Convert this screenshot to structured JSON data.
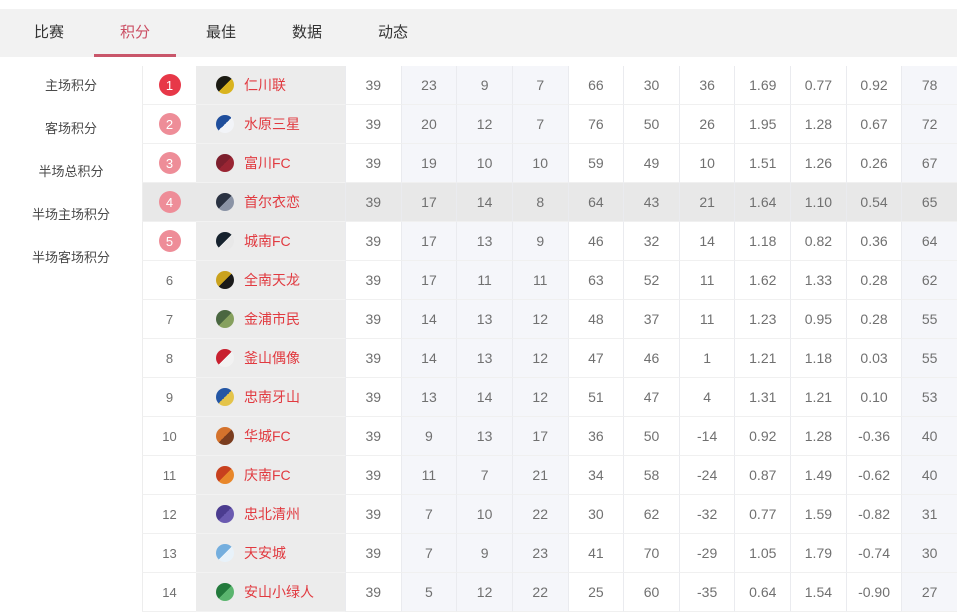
{
  "colors": {
    "accent-red": "#cb4e63",
    "underline": "#c9566a",
    "team-name": "#e13a40",
    "rank-top": "#e73848",
    "rank-sub": "#ee8d98",
    "row-highlight": "#e8e8e8",
    "team-cell-bg": "#ececec",
    "col-tint": "#f5f6fa",
    "tabbar-bg": "#f2f2f2",
    "num-text": "#707070"
  },
  "tabs": [
    {
      "label": "比赛",
      "active": false
    },
    {
      "label": "积分",
      "active": true
    },
    {
      "label": "最佳",
      "active": false
    },
    {
      "label": "数据",
      "active": false
    },
    {
      "label": "动态",
      "active": false
    }
  ],
  "sidebar": {
    "items": [
      "主场积分",
      "客场积分",
      "半场总积分",
      "半场主场积分",
      "半场客场积分"
    ]
  },
  "standings": {
    "rows": [
      {
        "rank": 1,
        "team": "仁川联",
        "logo_colors": [
          "#1b1a12",
          "#d9b31e"
        ],
        "highlighted": false,
        "stats": [
          39,
          23,
          9,
          7,
          66,
          30,
          36,
          "1.69",
          "0.77",
          "0.92",
          78
        ]
      },
      {
        "rank": 2,
        "team": "水原三星",
        "logo_colors": [
          "#1f4e9c",
          "#f2f4f8"
        ],
        "highlighted": false,
        "stats": [
          39,
          20,
          12,
          7,
          76,
          50,
          26,
          "1.95",
          "1.28",
          "0.67",
          72
        ]
      },
      {
        "rank": 3,
        "team": "富川FC",
        "logo_colors": [
          "#7d1f2d",
          "#9a2533"
        ],
        "highlighted": false,
        "stats": [
          39,
          19,
          10,
          10,
          59,
          49,
          10,
          "1.51",
          "1.26",
          "0.26",
          67
        ]
      },
      {
        "rank": 4,
        "team": "首尔衣恋",
        "logo_colors": [
          "#2a3242",
          "#8a93a5"
        ],
        "highlighted": true,
        "stats": [
          39,
          17,
          14,
          8,
          64,
          43,
          21,
          "1.64",
          "1.10",
          "0.54",
          65
        ]
      },
      {
        "rank": 5,
        "team": "城南FC",
        "logo_colors": [
          "#16222e",
          "#e8e8e8"
        ],
        "highlighted": false,
        "stats": [
          39,
          17,
          13,
          9,
          46,
          32,
          14,
          "1.18",
          "0.82",
          "0.36",
          64
        ]
      },
      {
        "rank": 6,
        "team": "全南天龙",
        "logo_colors": [
          "#caa21d",
          "#1a1a1a"
        ],
        "highlighted": false,
        "stats": [
          39,
          17,
          11,
          11,
          63,
          52,
          11,
          "1.62",
          "1.33",
          "0.28",
          62
        ]
      },
      {
        "rank": 7,
        "team": "金浦市民",
        "logo_colors": [
          "#4a6741",
          "#86a05e"
        ],
        "highlighted": false,
        "stats": [
          39,
          14,
          13,
          12,
          48,
          37,
          11,
          "1.23",
          "0.95",
          "0.28",
          55
        ]
      },
      {
        "rank": 8,
        "team": "釜山偶像",
        "logo_colors": [
          "#c8202f",
          "#f2f2f2"
        ],
        "highlighted": false,
        "stats": [
          39,
          14,
          13,
          12,
          47,
          46,
          1,
          "1.21",
          "1.18",
          "0.03",
          55
        ]
      },
      {
        "rank": 9,
        "team": "忠南牙山",
        "logo_colors": [
          "#2456a4",
          "#e4c44a"
        ],
        "highlighted": false,
        "stats": [
          39,
          13,
          14,
          12,
          51,
          47,
          4,
          "1.31",
          "1.21",
          "0.10",
          53
        ]
      },
      {
        "rank": 10,
        "team": "华城FC",
        "logo_colors": [
          "#d4722c",
          "#7a3c1e"
        ],
        "highlighted": false,
        "stats": [
          39,
          9,
          13,
          17,
          36,
          50,
          -14,
          "0.92",
          "1.28",
          "-0.36",
          40
        ]
      },
      {
        "rank": 11,
        "team": "庆南FC",
        "logo_colors": [
          "#c8401e",
          "#e8872a"
        ],
        "highlighted": false,
        "stats": [
          39,
          11,
          7,
          21,
          34,
          58,
          -24,
          "0.87",
          "1.49",
          "-0.62",
          40
        ]
      },
      {
        "rank": 12,
        "team": "忠北清州",
        "logo_colors": [
          "#4b3c8f",
          "#6a5ab0"
        ],
        "highlighted": false,
        "stats": [
          39,
          7,
          10,
          22,
          30,
          62,
          -32,
          "0.77",
          "1.59",
          "-0.82",
          31
        ]
      },
      {
        "rank": 13,
        "team": "天安城",
        "logo_colors": [
          "#74aede",
          "#e8f2fa"
        ],
        "highlighted": false,
        "stats": [
          39,
          7,
          9,
          23,
          41,
          70,
          -29,
          "1.05",
          "1.79",
          "-0.74",
          30
        ]
      },
      {
        "rank": 14,
        "team": "安山小绿人",
        "logo_colors": [
          "#237a3c",
          "#5ab56e"
        ],
        "highlighted": false,
        "stats": [
          39,
          5,
          12,
          22,
          25,
          60,
          -35,
          "0.64",
          "1.54",
          "-0.90",
          27
        ]
      }
    ]
  }
}
